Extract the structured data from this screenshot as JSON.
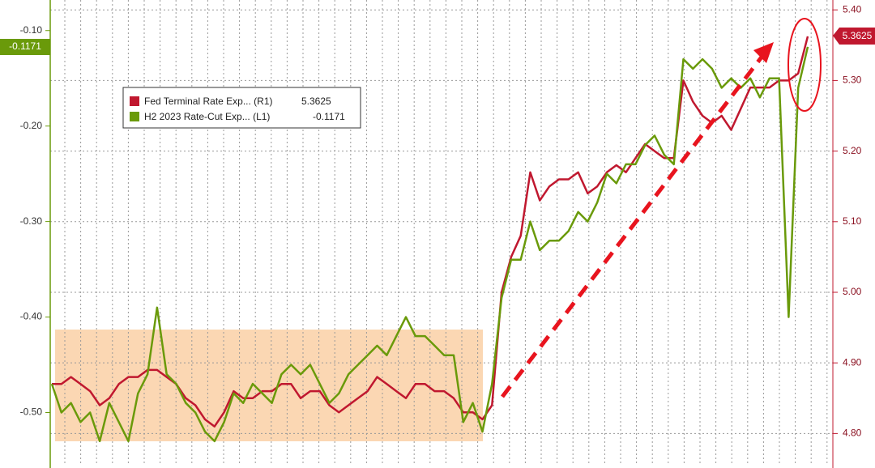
{
  "chart_data": {
    "type": "line",
    "categories": [
      null,
      null,
      null,
      null,
      null,
      null,
      null,
      null,
      null,
      null,
      null,
      null,
      null,
      null,
      null,
      null,
      null,
      null,
      null,
      null,
      null,
      null,
      null,
      null,
      null,
      null,
      null,
      null,
      null,
      null,
      null,
      null,
      null,
      null,
      null,
      null,
      null,
      null,
      null,
      null,
      null,
      null,
      null,
      null,
      null,
      null,
      null,
      null,
      null,
      null,
      null,
      null,
      null,
      null,
      null,
      null,
      null,
      null,
      null,
      null,
      null,
      null,
      null,
      null,
      null,
      null,
      null,
      null,
      null,
      null,
      null,
      null,
      null,
      null,
      null,
      null,
      null,
      null,
      null,
      null
    ],
    "series": [
      {
        "name": "Fed Terminal Rate Exp... (R1)",
        "color": "#c0182f",
        "axis": "y2",
        "values": [
          4.87,
          4.87,
          4.88,
          4.87,
          4.86,
          4.84,
          4.85,
          4.87,
          4.88,
          4.88,
          4.89,
          4.89,
          4.88,
          4.87,
          4.85,
          4.84,
          4.82,
          4.81,
          4.83,
          4.86,
          4.85,
          4.85,
          4.86,
          4.86,
          4.87,
          4.87,
          4.85,
          4.86,
          4.86,
          4.84,
          4.83,
          4.84,
          4.85,
          4.86,
          4.88,
          4.87,
          4.86,
          4.85,
          4.87,
          4.87,
          4.86,
          4.86,
          4.85,
          4.83,
          4.83,
          4.82,
          4.84,
          5.0,
          5.05,
          5.08,
          5.17,
          5.13,
          5.15,
          5.16,
          5.16,
          5.17,
          5.14,
          5.15,
          5.17,
          5.18,
          5.17,
          5.19,
          5.21,
          5.2,
          5.19,
          5.19,
          5.3,
          5.27,
          5.25,
          5.24,
          5.25,
          5.23,
          5.26,
          5.29,
          5.29,
          5.29,
          5.3,
          5.3,
          5.31,
          5.3625
        ]
      },
      {
        "name": "H2 2023 Rate-Cut Exp... (L1)",
        "color": "#6a9a0a",
        "values": [
          -0.47,
          -0.5,
          -0.49,
          -0.51,
          -0.5,
          -0.53,
          -0.49,
          -0.51,
          -0.53,
          -0.48,
          -0.46,
          -0.39,
          -0.46,
          -0.47,
          -0.49,
          -0.5,
          -0.52,
          -0.53,
          -0.51,
          -0.48,
          -0.49,
          -0.47,
          -0.48,
          -0.49,
          -0.46,
          -0.45,
          -0.46,
          -0.45,
          -0.47,
          -0.49,
          -0.48,
          -0.46,
          -0.45,
          -0.44,
          -0.43,
          -0.44,
          -0.42,
          -0.4,
          -0.42,
          -0.42,
          -0.43,
          -0.44,
          -0.44,
          -0.51,
          -0.49,
          -0.52,
          -0.47,
          -0.38,
          -0.34,
          -0.34,
          -0.3,
          -0.33,
          -0.32,
          -0.32,
          -0.31,
          -0.29,
          -0.3,
          -0.28,
          -0.25,
          -0.26,
          -0.24,
          -0.24,
          -0.22,
          -0.21,
          -0.23,
          -0.24,
          -0.13,
          -0.14,
          -0.13,
          -0.14,
          -0.16,
          -0.15,
          -0.16,
          -0.15,
          -0.17,
          -0.15,
          -0.15,
          -0.4,
          -0.16,
          -0.1171
        ]
      }
    ],
    "ylim": [
      -0.553,
      -0.068
    ],
    "yticks": [
      {
        "value": -0.1,
        "label": "-0.10"
      },
      {
        "value": -0.2,
        "label": "-0.20"
      },
      {
        "value": -0.3,
        "label": "-0.30"
      },
      {
        "value": -0.4,
        "label": "-0.40"
      },
      {
        "value": -0.5,
        "label": "-0.50"
      }
    ],
    "y2lim": [
      4.758,
      5.414
    ],
    "y2ticks": [
      {
        "value": 5.4,
        "label": "5.40"
      },
      {
        "value": 5.3,
        "label": "5.30"
      },
      {
        "value": 5.2,
        "label": "5.20"
      },
      {
        "value": 5.1,
        "label": "5.10"
      },
      {
        "value": 5.0,
        "label": "5.00"
      },
      {
        "value": 4.9,
        "label": "4.90"
      },
      {
        "value": 4.8,
        "label": "4.80"
      }
    ],
    "grid": true
  }
}
